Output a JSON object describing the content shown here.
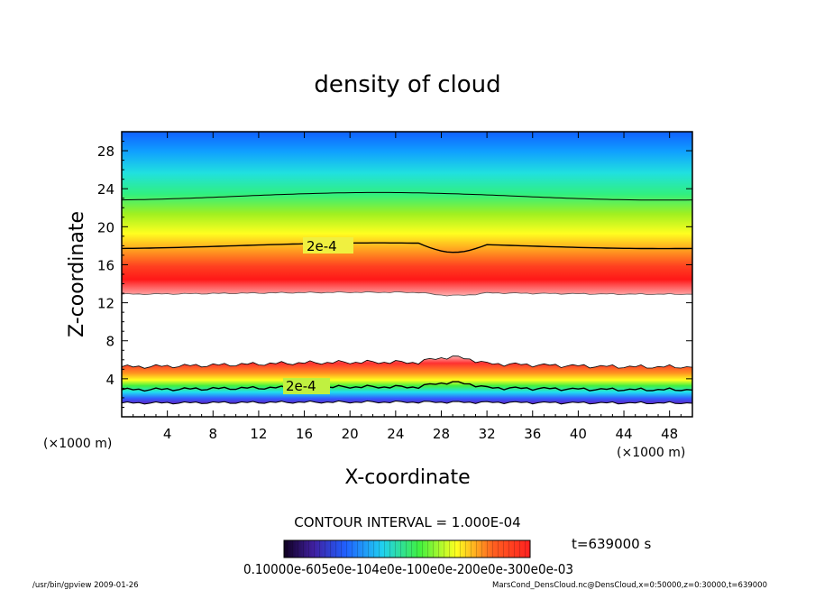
{
  "chart_data": {
    "type": "heatmap",
    "title": "density of cloud",
    "xlabel": "X-coordinate",
    "ylabel": "Z-coordinate",
    "x_unit": "(×1000 m)",
    "y_unit": "(×1000 m)",
    "xlim": [
      0,
      50
    ],
    "ylim": [
      0,
      30
    ],
    "x_ticks": [
      4,
      8,
      12,
      16,
      20,
      24,
      28,
      32,
      36,
      40,
      44,
      48
    ],
    "y_ticks": [
      4,
      8,
      12,
      16,
      20,
      24,
      28
    ],
    "contour_interval_text": "CONTOUR INTERVAL = 1.000E-04",
    "contour_labels": [
      "2e-4",
      "2e-4"
    ],
    "time_text": "t=639000 s",
    "colorbar_text": "0.10000e-605e0e-104e0e-100e0e-200e0e-300e0e-03",
    "colors": {
      "high": "#ff2020",
      "mid": "#ffff20",
      "low": "#20d0ff",
      "min": "#1040ff"
    },
    "upper_layer": {
      "z_bottom": 13.0,
      "z_peak": 15.0,
      "contour_2e4": 18.0,
      "contour_outer": 23.2
    },
    "lower_layer": {
      "z_bottom": 1.0,
      "z_peak": 4.5,
      "contour_2e4": 3.0,
      "z_top": 5.5
    }
  },
  "footer": {
    "left": "/usr/bin/gpview   2009-01-26",
    "right": "MarsCond_DensCloud.nc@DensCloud,x=0:50000,z=0:30000,t=639000"
  }
}
